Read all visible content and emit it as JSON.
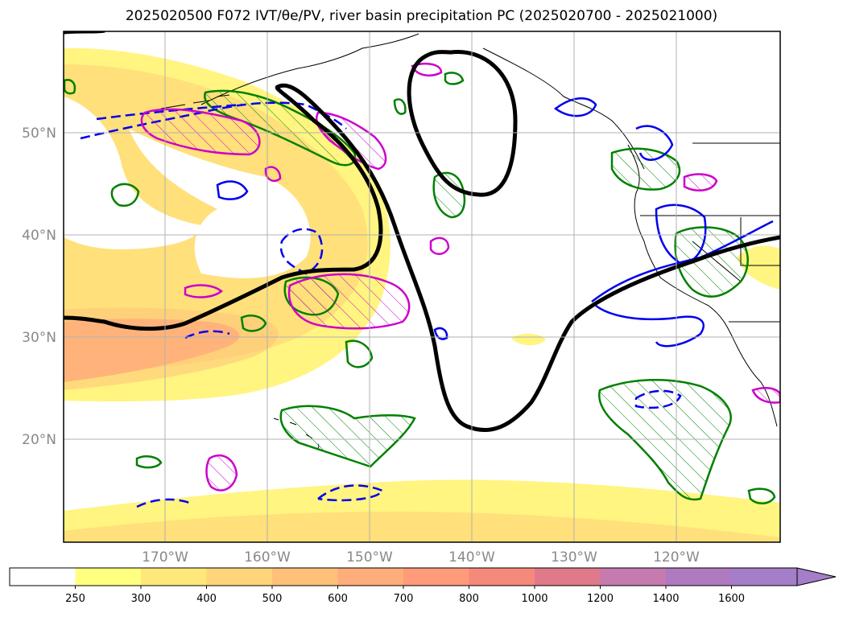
{
  "title_text": "2025020500 F072 IVT/θe/PV, river basin precipitation PC (2025020700 - 2025021000)",
  "lat_labels": [
    "50°N",
    "40°N",
    "30°N",
    "20°N"
  ],
  "lon_labels": [
    "170°W",
    "160°W",
    "150°W",
    "140°W",
    "130°W",
    "120°W"
  ],
  "colorbar": {
    "levels": [
      "250",
      "300",
      "400",
      "500",
      "600",
      "700",
      "800",
      "1000",
      "1200",
      "1400",
      "1600"
    ],
    "colors": [
      "#ffffff",
      "#ffff80",
      "#ffe87a",
      "#ffd47a",
      "#ffc07a",
      "#ffad7a",
      "#ff9a7a",
      "#f58a7a",
      "#e07a8a",
      "#c57ab0",
      "#b07ac0",
      "#a47ec8"
    ]
  },
  "colors": {
    "ivt_low": "#fff380",
    "ivt_mid": "#ffd97a",
    "ivt_high": "#ff9b7a",
    "theta_pos": "#0000ee",
    "pv": "#008000",
    "precip": "#cc00cc",
    "jet": "#000000",
    "coast": "#000000",
    "grid": "#b0b0b0"
  }
}
